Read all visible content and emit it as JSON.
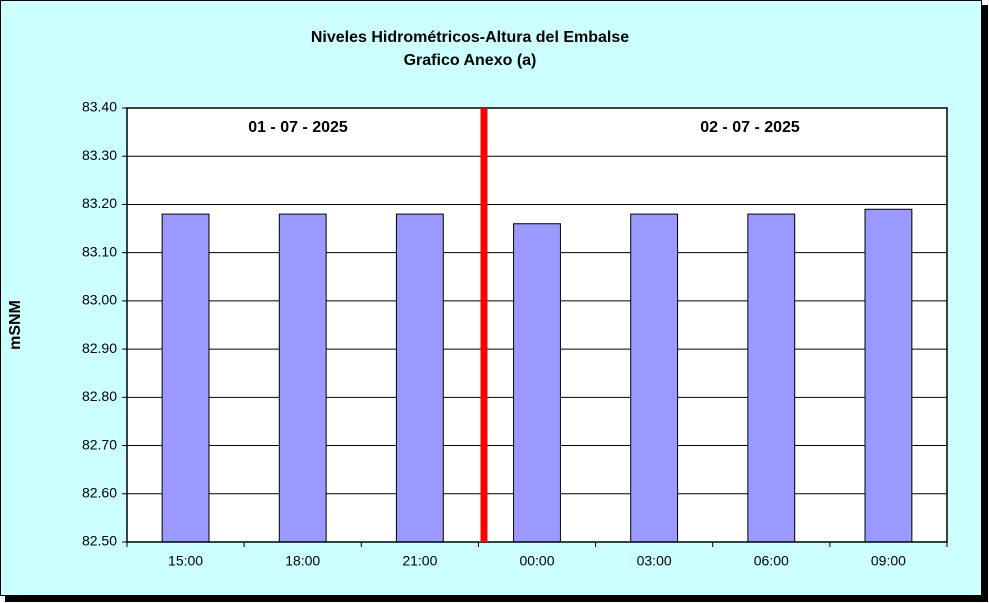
{
  "chart_data": {
    "type": "bar",
    "title": "Niveles Hidrométricos-Altura del Embalse",
    "subtitle": "Grafico Anexo (a)",
    "y_label": "mSNM",
    "annotations": [
      "01 - 07 - 2025",
      "02 - 07 - 2025"
    ],
    "categories": [
      "15:00",
      "18:00",
      "21:00",
      "00:00",
      "03:00",
      "06:00",
      "09:00"
    ],
    "values": [
      83.18,
      83.18,
      83.18,
      83.16,
      83.18,
      83.18,
      83.19
    ],
    "color": "#9999ff",
    "ylim": [
      82.5,
      83.4
    ],
    "yticks": [
      {
        "value": 82.5,
        "label": "82.50"
      },
      {
        "value": 82.6,
        "label": "82.60"
      },
      {
        "value": 82.7,
        "label": "82.70"
      },
      {
        "value": 82.8,
        "label": "82.80"
      },
      {
        "value": 82.9,
        "label": "82.90"
      },
      {
        "value": 83,
        "label": "83.00"
      },
      {
        "value": 83.1,
        "label": "83.10"
      },
      {
        "value": 83.2,
        "label": "83.20"
      },
      {
        "value": 83.3,
        "label": "83.30"
      },
      {
        "value": 83.4,
        "label": "83.40"
      }
    ],
    "grid": true
  }
}
